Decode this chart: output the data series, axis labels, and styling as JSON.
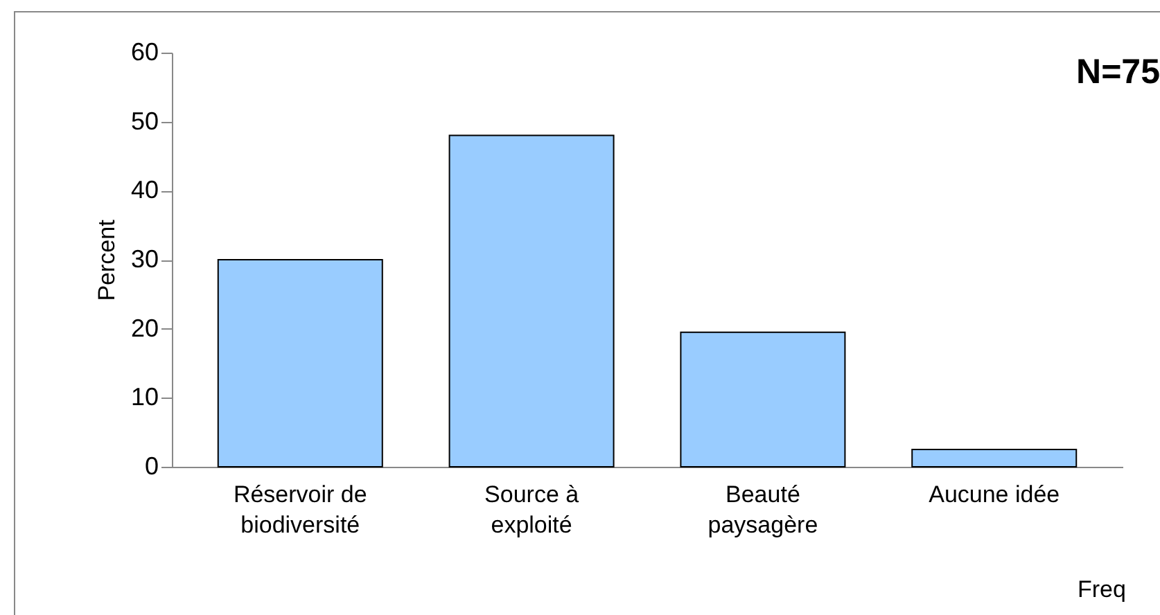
{
  "chart_data": {
    "type": "bar",
    "categories": [
      "Réservoir de\nbiodiversité",
      "Source à\nexploité",
      "Beauté\npaysagère",
      "Aucune idée"
    ],
    "values": [
      30,
      48,
      19.5,
      2.5
    ],
    "color": "#99ccff",
    "ylabel": "Percent",
    "ylim": [
      0,
      60
    ],
    "yticks": [
      0,
      10,
      20,
      30,
      40,
      50,
      60
    ],
    "annotations": [
      "N=75",
      "Freq"
    ]
  }
}
